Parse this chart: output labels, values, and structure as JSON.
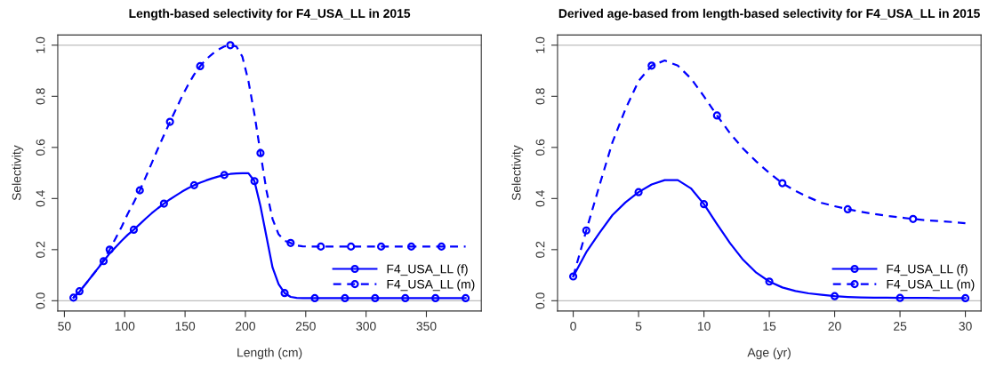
{
  "chart_data": [
    {
      "type": "line",
      "title": "Length-based selectivity for F4_USA_LL in 2015",
      "xlabel": "Length (cm)",
      "ylabel": "Selectivity",
      "x": [
        57.5,
        62.5,
        67.5,
        72.5,
        77.5,
        82.5,
        87.5,
        92.5,
        97.5,
        102.5,
        107.5,
        112.5,
        117.5,
        122.5,
        127.5,
        132.5,
        137.5,
        142.5,
        147.5,
        152.5,
        157.5,
        162.5,
        167.5,
        172.5,
        177.5,
        182.5,
        187.5,
        192.5,
        197.5,
        202.5,
        207.5,
        212.5,
        217.5,
        222.5,
        227.5,
        232.5,
        237.5,
        242.5,
        247.5,
        252.5,
        257.5,
        262.5,
        267.5,
        272.5,
        277.5,
        282.5,
        287.5,
        292.5,
        297.5,
        302.5,
        307.5,
        312.5,
        317.5,
        322.5,
        327.5,
        332.5,
        337.5,
        342.5,
        347.5,
        352.5,
        357.5,
        362.5,
        367.5,
        372.5,
        377.5,
        382.5
      ],
      "series": [
        {
          "name": "F4_USA_LL (f)",
          "color": "#0000ff",
          "line_style": "solid",
          "marker": "none",
          "values": [
            0.012,
            0.035,
            0.065,
            0.095,
            0.125,
            0.155,
            0.185,
            0.21,
            0.235,
            0.258,
            0.278,
            0.3,
            0.322,
            0.343,
            0.362,
            0.38,
            0.397,
            0.412,
            0.427,
            0.44,
            0.452,
            0.462,
            0.471,
            0.479,
            0.486,
            0.492,
            0.496,
            0.498,
            0.499,
            0.499,
            0.468,
            0.37,
            0.25,
            0.13,
            0.065,
            0.03,
            0.015,
            0.011,
            0.01,
            0.01,
            0.01,
            0.01,
            0.01,
            0.01,
            0.01,
            0.01,
            0.01,
            0.01,
            0.01,
            0.01,
            0.01,
            0.01,
            0.01,
            0.01,
            0.01,
            0.01,
            0.01,
            0.01,
            0.01,
            0.01,
            0.01,
            0.01,
            0.01,
            0.01,
            0.01,
            0.01
          ]
        },
        {
          "name": "F4_USA_LL (m)",
          "color": "#0000ff",
          "line_style": "dashed",
          "marker": "none",
          "values": [
            0.012,
            0.037,
            0.065,
            0.095,
            0.125,
            0.16,
            0.2,
            0.245,
            0.29,
            0.34,
            0.385,
            0.432,
            0.485,
            0.54,
            0.595,
            0.648,
            0.7,
            0.75,
            0.8,
            0.845,
            0.885,
            0.918,
            0.945,
            0.965,
            0.983,
            0.995,
            1.0,
            0.995,
            0.955,
            0.86,
            0.73,
            0.578,
            0.43,
            0.32,
            0.26,
            0.235,
            0.226,
            0.216,
            0.213,
            0.212,
            0.212,
            0.212,
            0.212,
            0.212,
            0.212,
            0.212,
            0.212,
            0.212,
            0.212,
            0.212,
            0.212,
            0.212,
            0.212,
            0.212,
            0.212,
            0.212,
            0.212,
            0.212,
            0.212,
            0.212,
            0.212,
            0.212,
            0.212,
            0.212,
            0.212,
            0.212
          ]
        },
        {
          "type": "scatter",
          "color": "#0000ff",
          "x": [
            57.5,
            82.5,
            107.5,
            132.5,
            157.5,
            182.5,
            207.5,
            232.5,
            257.5,
            282.5,
            307.5,
            332.5,
            357.5,
            382.5
          ],
          "values": [
            0.012,
            0.155,
            0.278,
            0.38,
            0.452,
            0.492,
            0.468,
            0.03,
            0.01,
            0.01,
            0.01,
            0.01,
            0.01,
            0.01
          ]
        },
        {
          "type": "scatter",
          "color": "#0000ff",
          "x": [
            62.5,
            87.5,
            112.5,
            137.5,
            162.5,
            187.5,
            212.5,
            237.5,
            262.5,
            287.5,
            312.5,
            337.5,
            362.5
          ],
          "values": [
            0.037,
            0.2,
            0.432,
            0.7,
            0.918,
            1.0,
            0.578,
            0.226,
            0.212,
            0.212,
            0.212,
            0.212,
            0.212
          ]
        }
      ],
      "xlim": [
        44.5,
        395.5
      ],
      "xticks": [
        50,
        100,
        150,
        200,
        250,
        300,
        350
      ],
      "ylim": [
        -0.04,
        1.04
      ],
      "yticks": [
        {
          "value": 0,
          "label": "0.0"
        },
        {
          "value": 0.2,
          "label": "0.2"
        },
        {
          "value": 0.4,
          "label": "0.4"
        },
        {
          "value": 0.6,
          "label": "0.6"
        },
        {
          "value": 0.8,
          "label": "0.8"
        },
        {
          "value": 1,
          "label": "1.0"
        }
      ],
      "ref_lines": [
        {
          "axis": "y",
          "value": 0,
          "color": "#bebebe"
        },
        {
          "axis": "y",
          "value": 1,
          "color": "#bebebe"
        }
      ],
      "marker": "circle",
      "legend": "bottom right",
      "grid": false
    },
    {
      "type": "line",
      "title": "Derived age-based from length-based selectivity for F4_USA_LL in 2015",
      "xlabel": "Age (yr)",
      "ylabel": "Selectivity",
      "x": [
        0,
        1,
        2,
        3,
        4,
        5,
        6,
        7,
        8,
        9,
        10,
        11,
        12,
        13,
        14,
        15,
        16,
        17,
        18,
        19,
        20,
        21,
        22,
        23,
        24,
        25,
        26,
        27,
        28,
        29,
        30
      ],
      "series": [
        {
          "name": "F4_USA_LL (f)",
          "color": "#0000ff",
          "line_style": "solid",
          "marker": "none",
          "values": [
            0.095,
            0.19,
            0.265,
            0.335,
            0.385,
            0.425,
            0.455,
            0.472,
            0.472,
            0.44,
            0.378,
            0.3,
            0.225,
            0.16,
            0.11,
            0.075,
            0.052,
            0.038,
            0.029,
            0.023,
            0.018,
            0.015,
            0.013,
            0.012,
            0.012,
            0.011,
            0.011,
            0.011,
            0.01,
            0.01,
            0.01
          ]
        },
        {
          "name": "F4_USA_LL (m)",
          "color": "#0000ff",
          "line_style": "dashed",
          "marker": "none",
          "values": [
            0.095,
            0.275,
            0.45,
            0.62,
            0.75,
            0.86,
            0.92,
            0.94,
            0.92,
            0.87,
            0.8,
            0.725,
            0.655,
            0.595,
            0.545,
            0.5,
            0.46,
            0.43,
            0.405,
            0.383,
            0.37,
            0.358,
            0.348,
            0.34,
            0.332,
            0.326,
            0.32,
            0.315,
            0.312,
            0.308,
            0.303
          ]
        },
        {
          "type": "scatter",
          "color": "#0000ff",
          "x": [
            0,
            5,
            10,
            15,
            20,
            25,
            30
          ],
          "values": [
            0.095,
            0.425,
            0.378,
            0.075,
            0.018,
            0.011,
            0.01
          ]
        },
        {
          "type": "scatter",
          "color": "#0000ff",
          "x": [
            1,
            6,
            11,
            16,
            21,
            26
          ],
          "values": [
            0.275,
            0.92,
            0.725,
            0.46,
            0.358,
            0.32
          ]
        }
      ],
      "xlim": [
        -1.2,
        31.2
      ],
      "xticks": [
        0,
        5,
        10,
        15,
        20,
        25,
        30
      ],
      "ylim": [
        -0.04,
        1.04
      ],
      "yticks": [
        {
          "value": 0,
          "label": "0.0"
        },
        {
          "value": 0.2,
          "label": "0.2"
        },
        {
          "value": 0.4,
          "label": "0.4"
        },
        {
          "value": 0.6,
          "label": "0.6"
        },
        {
          "value": 0.8,
          "label": "0.8"
        },
        {
          "value": 1,
          "label": "1.0"
        }
      ],
      "ref_lines": [
        {
          "axis": "y",
          "value": 0,
          "color": "#bebebe"
        },
        {
          "axis": "y",
          "value": 1,
          "color": "#bebebe"
        }
      ],
      "marker": "circle",
      "legend": "bottom right",
      "grid": false
    }
  ]
}
